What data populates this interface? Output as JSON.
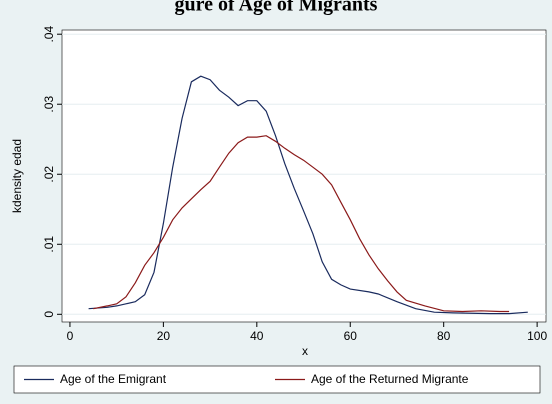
{
  "chart_data": {
    "type": "line",
    "title": "gure of Age of Migrants",
    "x_label": "x",
    "y_label": "kdensity edad",
    "xlim": [
      -1.7,
      101.9
    ],
    "xticks": [
      0,
      20,
      40,
      60,
      80,
      100
    ],
    "ylim": [
      -0.0011,
      0.0406
    ],
    "yticks": [
      0,
      {
        "value": 0.01,
        "label": ".01"
      },
      {
        "value": 0.02,
        "label": ".02"
      },
      {
        "value": 0.03,
        "label": ".03"
      },
      {
        "value": 0.04,
        "label": ".04"
      }
    ],
    "grid": true,
    "series": [
      {
        "name": "Age of the Emigrant",
        "color": "#1a2b5e",
        "x": [
          4,
          8,
          10,
          12,
          14,
          16,
          18,
          20,
          22,
          24,
          26,
          28,
          30,
          32,
          34,
          36,
          38,
          40,
          42,
          44,
          46,
          48,
          50,
          52,
          54,
          56,
          58,
          60,
          64,
          66,
          70,
          74,
          78,
          82,
          90,
          94,
          98
        ],
        "values": [
          0.0008,
          0.001,
          0.0012,
          0.0015,
          0.0018,
          0.0028,
          0.006,
          0.013,
          0.021,
          0.028,
          0.0332,
          0.034,
          0.0335,
          0.032,
          0.031,
          0.0298,
          0.0305,
          0.0305,
          0.029,
          0.0255,
          0.0215,
          0.018,
          0.0148,
          0.0115,
          0.0075,
          0.005,
          0.0042,
          0.0036,
          0.0032,
          0.0029,
          0.0018,
          0.0008,
          0.0003,
          0.0002,
          0.0001,
          0.0001,
          0.0003
        ]
      },
      {
        "name": "Age of the Returned Migrante",
        "color": "#8b1a1a",
        "x": [
          5,
          8,
          10,
          12,
          14,
          16,
          18,
          20,
          22,
          24,
          26,
          28,
          30,
          32,
          34,
          36,
          38,
          40,
          42,
          44,
          46,
          48,
          50,
          52,
          54,
          56,
          58,
          60,
          62,
          64,
          66,
          68,
          70,
          72,
          76,
          80,
          84,
          88,
          92,
          94
        ],
        "values": [
          0.0008,
          0.0012,
          0.0015,
          0.0025,
          0.0045,
          0.007,
          0.0088,
          0.011,
          0.0135,
          0.0152,
          0.0165,
          0.0178,
          0.019,
          0.021,
          0.023,
          0.0245,
          0.0253,
          0.0253,
          0.0255,
          0.0247,
          0.0237,
          0.0228,
          0.022,
          0.021,
          0.02,
          0.0185,
          0.016,
          0.0135,
          0.0108,
          0.0085,
          0.0065,
          0.0048,
          0.0032,
          0.002,
          0.0012,
          0.0005,
          0.0004,
          0.0005,
          0.0004,
          0.0004
        ]
      }
    ]
  }
}
